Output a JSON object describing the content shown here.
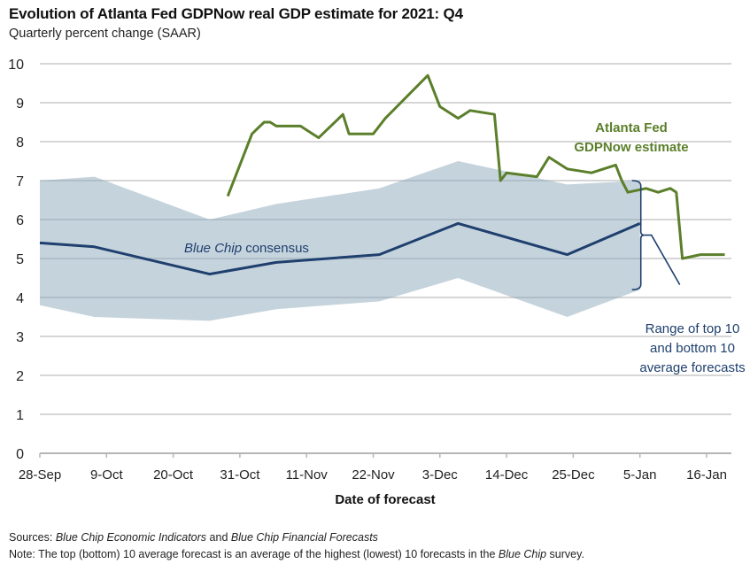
{
  "chart_data": {
    "type": "line",
    "title": "Evolution of Atlanta Fed GDPNow real GDP estimate for 2021: Q4",
    "subtitle": "Quarterly percent change (SAAR)",
    "xlabel": "Date of forecast",
    "ylabel": "",
    "x_unit": "days since 28-Sep (approximate)",
    "xlim": [
      0,
      114
    ],
    "ylim": [
      0,
      10
    ],
    "grid": true,
    "x_ticks": [
      {
        "label": "28-Sep",
        "day": 0
      },
      {
        "label": "9-Oct",
        "day": 11
      },
      {
        "label": "20-Oct",
        "day": 22
      },
      {
        "label": "31-Oct",
        "day": 33
      },
      {
        "label": "11-Nov",
        "day": 44
      },
      {
        "label": "22-Nov",
        "day": 55
      },
      {
        "label": "3-Dec",
        "day": 66
      },
      {
        "label": "14-Dec",
        "day": 77
      },
      {
        "label": "25-Dec",
        "day": 88
      },
      {
        "label": "5-Jan",
        "day": 99
      },
      {
        "label": "16-Jan",
        "day": 110
      }
    ],
    "y_ticks": [
      "0",
      "1",
      "2",
      "3",
      "4",
      "5",
      "6",
      "7",
      "8",
      "9",
      "10"
    ],
    "series": [
      {
        "name": "Blue Chip range (top 10 / bottom 10 average)",
        "kind": "band",
        "color": "#c5d3dc",
        "x": [
          0,
          9,
          28,
          39,
          56,
          69,
          87,
          99
        ],
        "upper": [
          7.0,
          7.1,
          6.0,
          6.4,
          6.8,
          7.5,
          6.9,
          7.0
        ],
        "lower": [
          3.8,
          3.5,
          3.4,
          3.7,
          3.9,
          4.5,
          3.5,
          4.2
        ]
      },
      {
        "name": "Blue Chip consensus",
        "kind": "line",
        "color": "#1f3f6e",
        "x": [
          0,
          9,
          28,
          39,
          56,
          69,
          87,
          99
        ],
        "values": [
          5.4,
          5.3,
          4.6,
          4.9,
          5.1,
          5.9,
          5.1,
          5.9
        ]
      },
      {
        "name": "Atlanta Fed GDPNow estimate",
        "kind": "line",
        "color": "#5b7f2a",
        "x": [
          31,
          35,
          37,
          38,
          39,
          42,
          43,
          45,
          46,
          50,
          51,
          55,
          57,
          64,
          66,
          69,
          70,
          71,
          75,
          76,
          77,
          82,
          84,
          87,
          91,
          95,
          96,
          97,
          100,
          102,
          104,
          105,
          106,
          109,
          113
        ],
        "values": [
          6.6,
          8.2,
          8.5,
          8.5,
          8.4,
          8.4,
          8.4,
          8.2,
          8.1,
          8.7,
          8.2,
          8.2,
          8.6,
          9.7,
          8.9,
          8.6,
          8.7,
          8.8,
          8.7,
          7.0,
          7.2,
          7.1,
          7.6,
          7.3,
          7.2,
          7.4,
          7.0,
          6.7,
          6.8,
          6.7,
          6.8,
          6.7,
          5.0,
          5.1,
          5.1
        ]
      }
    ],
    "annotations": {
      "gdpnow_label": [
        "Atlanta Fed",
        "GDPNow estimate"
      ],
      "consensus_label_italic": "Blue Chip",
      "consensus_label_rest": " consensus",
      "range_label": [
        "Range of top 10",
        "and bottom 10",
        "average forecasts"
      ]
    },
    "legend": "none (inline annotations)"
  },
  "footer": {
    "sources_label": "Sources:",
    "sources_italic_1": "Blue Chip Economic Indicators",
    "sources_and": " and ",
    "sources_italic_2": "Blue Chip Financial Forecasts",
    "note_label": "Note:",
    "note_text_1": " The top (bottom) 10 average forecast is an average of the highest (lowest) 10 forecasts in the ",
    "note_italic": "Blue Chip",
    "note_text_2": " survey."
  }
}
